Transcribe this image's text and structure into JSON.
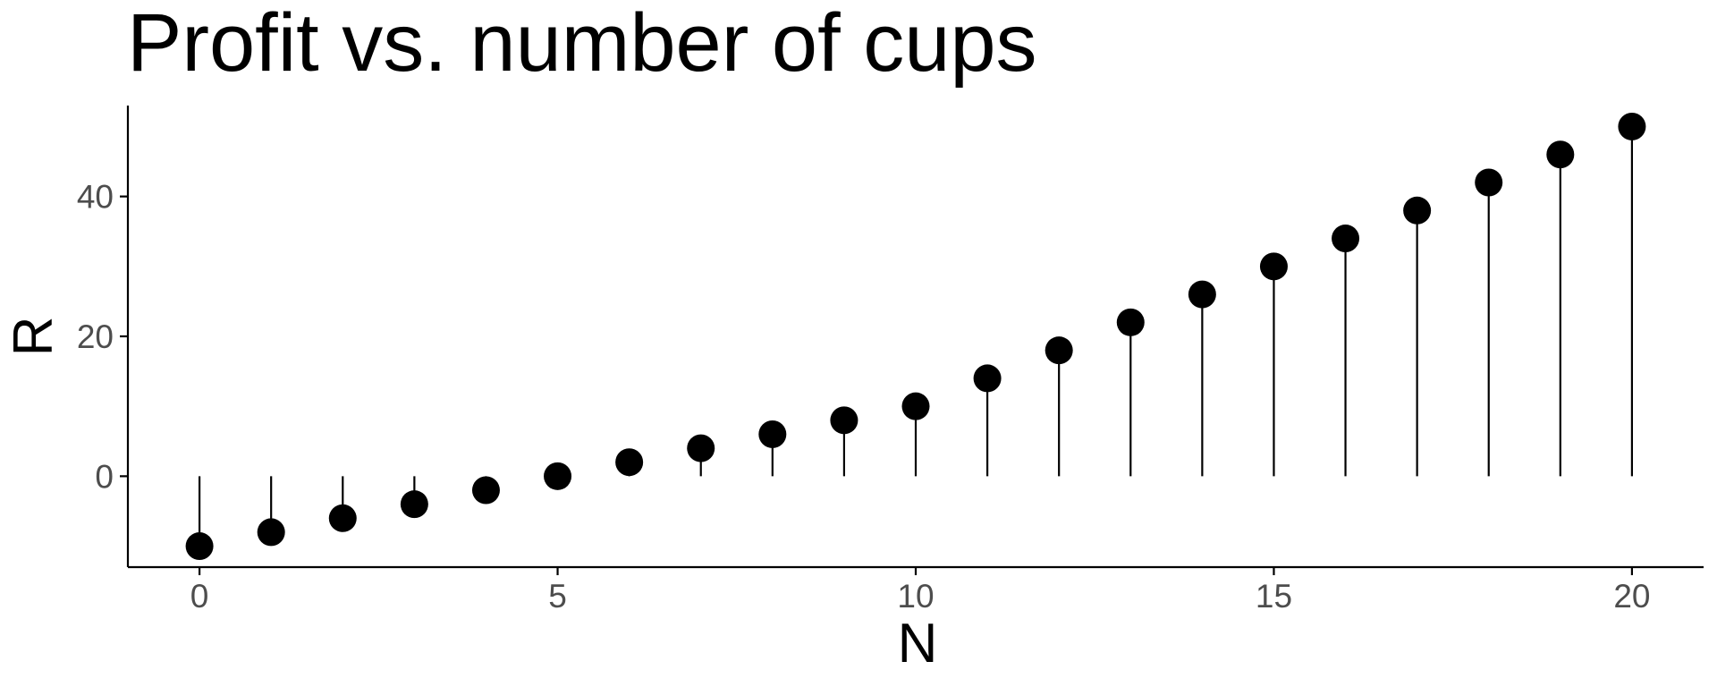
{
  "chart_data": {
    "type": "lollipop",
    "title": "Profit vs. number of cups",
    "xlabel": "N",
    "ylabel": "R",
    "xlim": [
      -1,
      21
    ],
    "ylim": [
      -13,
      53
    ],
    "baseline": 0,
    "x_ticks": [
      0,
      5,
      10,
      15,
      20
    ],
    "y_ticks": [
      0,
      20,
      40
    ],
    "grid": false,
    "series": [
      {
        "x": [
          0,
          1,
          2,
          3,
          4,
          5,
          6,
          7,
          8,
          9,
          10,
          11,
          12,
          13,
          14,
          15,
          16,
          17,
          18,
          19,
          20
        ],
        "y": [
          -10,
          -8,
          -6,
          -4,
          -2,
          0,
          2,
          4,
          6,
          8,
          10,
          14,
          18,
          22,
          26,
          30,
          34,
          38,
          42,
          46,
          50
        ]
      }
    ]
  },
  "colors": {
    "point": "#000000",
    "stem": "#000000",
    "axis": "#000000",
    "tick_label": "#4d4d4d"
  }
}
